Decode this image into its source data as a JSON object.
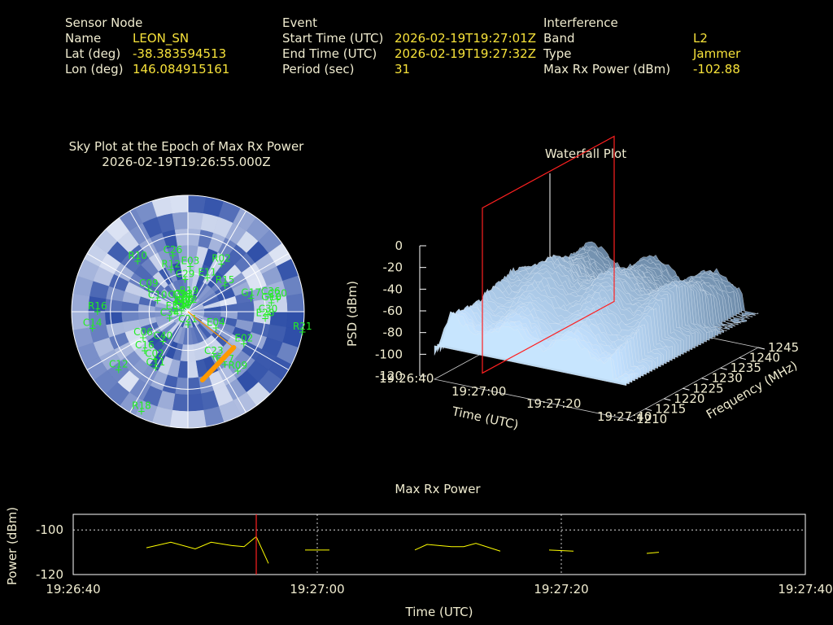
{
  "header": {
    "sensor": {
      "heading": "Sensor Node",
      "rows": [
        {
          "label": "Name",
          "value": "LEON_SN"
        },
        {
          "label": "Lat (deg)",
          "value": "-38.383594513"
        },
        {
          "label": "Lon (deg)",
          "value": "146.084915161"
        }
      ]
    },
    "event": {
      "heading": "Event",
      "rows": [
        {
          "label": "Start Time (UTC)",
          "value": "2026-02-19T19:27:01Z"
        },
        {
          "label": "End Time (UTC)",
          "value": "2026-02-19T19:27:32Z"
        },
        {
          "label": "Period (sec)",
          "value": "31"
        }
      ]
    },
    "interference": {
      "heading": "Interference",
      "rows": [
        {
          "label": "Band",
          "value": "L2"
        },
        {
          "label": "Type",
          "value": "Jammer"
        },
        {
          "label": "Max Rx Power (dBm)",
          "value": "-102.88"
        }
      ]
    }
  },
  "colors": {
    "background": "#000000",
    "label_text": "#f0ecd0",
    "value_text": "#f7e23a",
    "sat_labels": "#22ee22",
    "power_line": "#ffff00",
    "marker_line": "#ff2020",
    "bearing": "#ff9900",
    "sky_fill_dark": "#2f4fa8",
    "sky_fill_light": "#dde4f4"
  },
  "chart_data": [
    {
      "type": "scatter",
      "id": "sky",
      "title": "Sky Plot at the Epoch of Max Rx Power",
      "subtitle": "2026-02-19T19:26:55.000Z",
      "satellites": [
        {
          "id": "C22",
          "az": 0,
          "el": 85
        },
        {
          "id": "C13",
          "az": 340,
          "el": 80
        },
        {
          "id": "R19",
          "az": 4,
          "el": 78
        },
        {
          "id": "G30",
          "az": 330,
          "el": 85
        },
        {
          "id": "C38",
          "az": 333,
          "el": 80
        },
        {
          "id": "C39",
          "az": 318,
          "el": 78
        },
        {
          "id": "C08",
          "az": 318,
          "el": 85
        },
        {
          "id": "C29",
          "az": 355,
          "el": 65
        },
        {
          "id": "E03",
          "az": 3,
          "el": 55
        },
        {
          "id": "R02",
          "az": 35,
          "el": 45
        },
        {
          "id": "E11",
          "az": 30,
          "el": 60
        },
        {
          "id": "R12",
          "az": 338,
          "el": 55
        },
        {
          "id": "C26",
          "az": 345,
          "el": 45
        },
        {
          "id": "C09",
          "az": 300,
          "el": 55
        },
        {
          "id": "C10",
          "az": 290,
          "el": 65
        },
        {
          "id": "E06",
          "az": 278,
          "el": 85
        },
        {
          "id": "E33",
          "az": 270,
          "el": 80
        },
        {
          "id": "R10",
          "az": 315,
          "el": 35
        },
        {
          "id": "R15",
          "az": 55,
          "el": 55
        },
        {
          "id": "C36",
          "az": 80,
          "el": 25
        },
        {
          "id": "C20",
          "az": 82,
          "el": 20
        },
        {
          "id": "C30",
          "az": 92,
          "el": 28
        },
        {
          "id": "G17",
          "az": 78,
          "el": 40
        },
        {
          "id": "E28",
          "az": 95,
          "el": 30
        },
        {
          "id": "G10",
          "az": 84,
          "el": 25
        },
        {
          "id": "R21",
          "az": 100,
          "el": 0
        },
        {
          "id": "E02",
          "az": 120,
          "el": 40
        },
        {
          "id": "E27",
          "az": 145,
          "el": 40
        },
        {
          "id": "R09",
          "az": 140,
          "el": 30
        },
        {
          "id": "C23",
          "az": 150,
          "el": 50
        },
        {
          "id": "C12",
          "az": 230,
          "el": 20
        },
        {
          "id": "C14",
          "az": 260,
          "el": 15
        },
        {
          "id": "C11",
          "az": 210,
          "el": 40
        },
        {
          "id": "C06",
          "az": 240,
          "el": 50
        },
        {
          "id": "C02",
          "az": 215,
          "el": 45
        },
        {
          "id": "C40",
          "az": 220,
          "el": 60
        },
        {
          "id": "C16",
          "az": 228,
          "el": 45
        },
        {
          "id": "R18",
          "az": 205,
          "el": 5
        },
        {
          "id": "C34",
          "az": 250,
          "el": 75
        },
        {
          "id": "R16",
          "az": 270,
          "el": 20
        },
        {
          "id": "C21",
          "az": 180,
          "el": 80
        },
        {
          "id": "E04",
          "az": 120,
          "el": 65
        }
      ],
      "bearing_az_deg": [
        128,
        168
      ],
      "bearing_length": [
        0.5,
        0.6
      ]
    },
    {
      "type": "area",
      "id": "waterfall",
      "title": "Waterfall Plot",
      "xlabel": "Time (UTC)",
      "ylabel": "Frequency (MHz)",
      "zlabel": "PSD (dBm)",
      "x_ticks": [
        "19:26:40",
        "19:27:00",
        "19:27:20",
        "19:27:40"
      ],
      "y_ticks": [
        "1210",
        "1215",
        "1220",
        "1225",
        "1230",
        "1235",
        "1240",
        "1245"
      ],
      "z_ticks": [
        "0",
        "-20",
        "-40",
        "-60",
        "-80",
        "-100",
        "-120"
      ],
      "zlim": [
        -120,
        0
      ],
      "ylim": [
        1210,
        1245
      ],
      "x_range_s": [
        0,
        60
      ],
      "marker_time": "19:26:55"
    },
    {
      "type": "line",
      "id": "maxpower",
      "title": "Max Rx Power",
      "xlabel": "Time (UTC)",
      "ylabel": "Power (dBm)",
      "x_ticks": [
        "19:26:40",
        "19:27:00",
        "19:27:20",
        "19:27:40"
      ],
      "y_ticks": [
        "-100",
        "-120"
      ],
      "ylim": [
        -120,
        -93
      ],
      "x_range_s": [
        0,
        60
      ],
      "marker_s": 15,
      "segments": [
        [
          [
            6,
            -108
          ],
          [
            8,
            -105.5
          ],
          [
            10,
            -108.5
          ],
          [
            11.3,
            -105.5
          ],
          [
            13,
            -107
          ],
          [
            14,
            -107.5
          ],
          [
            15,
            -103
          ],
          [
            16,
            -115
          ]
        ],
        [
          [
            19,
            -109
          ],
          [
            21,
            -109
          ]
        ],
        [
          [
            28,
            -109
          ],
          [
            29,
            -106.5
          ],
          [
            31,
            -107.5
          ],
          [
            32,
            -107.5
          ],
          [
            33,
            -106
          ],
          [
            35,
            -109.5
          ]
        ],
        [
          [
            39,
            -109
          ],
          [
            41,
            -109.5
          ]
        ],
        [
          [
            47,
            -110.5
          ],
          [
            48,
            -110
          ]
        ]
      ]
    }
  ]
}
